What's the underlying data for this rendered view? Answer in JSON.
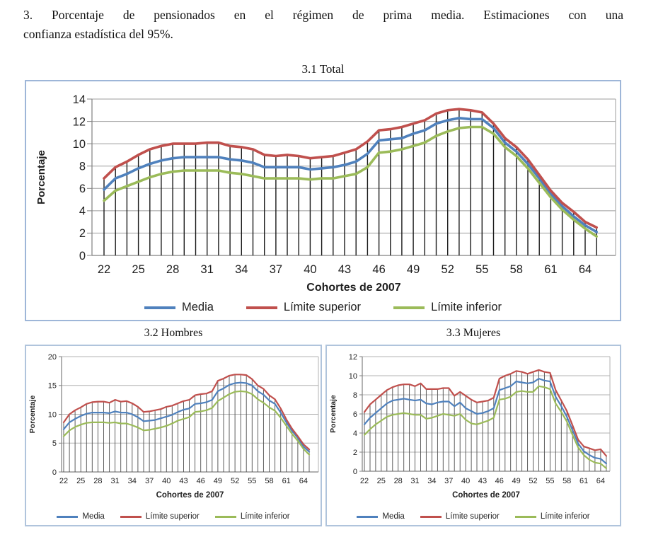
{
  "page": {
    "heading_line1": "3. Porcentaje de pensionados en el régimen de prima media. Estimaciones con una",
    "heading_line2": "confianza estadística del 95%."
  },
  "colors": {
    "media": "#4F81BD",
    "limite_superior": "#C0504D",
    "limite_inferior": "#9BBB59",
    "chart_border_blue": "#9eb6d8",
    "gridline_gray": "#9e9e9e",
    "axis_gray": "#808080",
    "dropline_dark": "#1a1a1a"
  },
  "chart_data": [
    {
      "type": "line",
      "title": "3.1 Total",
      "xlabel": "Cohortes de 2007",
      "ylabel": "Porcentaje",
      "x": [
        22,
        23,
        24,
        25,
        26,
        27,
        28,
        29,
        30,
        31,
        32,
        33,
        34,
        35,
        36,
        37,
        38,
        39,
        40,
        41,
        42,
        43,
        44,
        45,
        46,
        47,
        48,
        49,
        50,
        51,
        52,
        53,
        54,
        55,
        56,
        57,
        58,
        59,
        60,
        61,
        62,
        63,
        64,
        65
      ],
      "xticks": [
        22,
        25,
        28,
        31,
        34,
        37,
        40,
        43,
        46,
        49,
        52,
        55,
        58,
        61,
        64
      ],
      "ylim": [
        0,
        14
      ],
      "yticks": [
        0,
        2,
        4,
        6,
        8,
        10,
        12,
        14
      ],
      "grid": true,
      "droplines": true,
      "legend_position": "bottom",
      "series": [
        {
          "name": "Media",
          "color": "#4F81BD",
          "values": [
            5.9,
            6.9,
            7.3,
            7.8,
            8.2,
            8.5,
            8.7,
            8.8,
            8.8,
            8.8,
            8.8,
            8.6,
            8.5,
            8.3,
            7.9,
            7.9,
            7.9,
            7.9,
            7.7,
            7.8,
            7.9,
            8.1,
            8.4,
            9.1,
            10.3,
            10.4,
            10.5,
            10.9,
            11.2,
            11.8,
            12.1,
            12.3,
            12.2,
            12.2,
            11.4,
            10.1,
            9.3,
            8.2,
            6.9,
            5.5,
            4.4,
            3.5,
            2.7,
            2.1
          ]
        },
        {
          "name": "Límite superior",
          "color": "#C0504D",
          "values": [
            6.9,
            7.9,
            8.4,
            9.0,
            9.5,
            9.8,
            10.0,
            10.0,
            10.0,
            10.1,
            10.1,
            9.8,
            9.7,
            9.5,
            9.0,
            8.9,
            9.0,
            8.9,
            8.7,
            8.8,
            8.9,
            9.2,
            9.5,
            10.2,
            11.2,
            11.3,
            11.5,
            11.8,
            12.1,
            12.7,
            13.0,
            13.1,
            13.0,
            12.8,
            11.8,
            10.5,
            9.7,
            8.6,
            7.2,
            5.8,
            4.7,
            3.9,
            3.0,
            2.5
          ]
        },
        {
          "name": "Límite inferior",
          "color": "#9BBB59",
          "values": [
            4.9,
            5.8,
            6.2,
            6.6,
            7.0,
            7.3,
            7.5,
            7.6,
            7.6,
            7.6,
            7.6,
            7.4,
            7.3,
            7.1,
            6.9,
            6.9,
            6.9,
            6.9,
            6.8,
            6.9,
            6.9,
            7.1,
            7.3,
            7.9,
            9.2,
            9.3,
            9.5,
            9.8,
            10.1,
            10.7,
            11.1,
            11.4,
            11.5,
            11.5,
            10.9,
            9.7,
            8.9,
            7.8,
            6.5,
            5.2,
            4.1,
            3.2,
            2.4,
            1.7
          ]
        }
      ]
    },
    {
      "type": "line",
      "title": "3.2 Hombres",
      "xlabel": "Cohortes de 2007",
      "ylabel": "Porcentaje",
      "x": [
        22,
        23,
        24,
        25,
        26,
        27,
        28,
        29,
        30,
        31,
        32,
        33,
        34,
        35,
        36,
        37,
        38,
        39,
        40,
        41,
        42,
        43,
        44,
        45,
        46,
        47,
        48,
        49,
        50,
        51,
        52,
        53,
        54,
        55,
        56,
        57,
        58,
        59,
        60,
        61,
        62,
        63,
        64,
        65
      ],
      "xticks": [
        22,
        25,
        28,
        31,
        34,
        37,
        40,
        43,
        46,
        49,
        52,
        55,
        58,
        61,
        64
      ],
      "ylim": [
        0,
        20
      ],
      "yticks": [
        0,
        5,
        10,
        15,
        20
      ],
      "grid": true,
      "droplines": true,
      "legend_position": "bottom",
      "series": [
        {
          "name": "Media",
          "color": "#4F81BD",
          "values": [
            7.4,
            8.6,
            9.2,
            9.7,
            10.1,
            10.3,
            10.3,
            10.3,
            10.2,
            10.5,
            10.3,
            10.3,
            10.0,
            9.5,
            8.8,
            8.9,
            9.0,
            9.3,
            9.6,
            9.9,
            10.4,
            10.8,
            11.0,
            11.8,
            11.9,
            12.1,
            12.5,
            14.0,
            14.5,
            15.1,
            15.4,
            15.5,
            15.4,
            15.0,
            14.0,
            13.4,
            12.4,
            11.8,
            10.3,
            8.6,
            7.1,
            5.9,
            4.4,
            3.5
          ]
        },
        {
          "name": "Límite superior",
          "color": "#C0504D",
          "values": [
            8.6,
            10.0,
            10.7,
            11.2,
            11.8,
            12.1,
            12.2,
            12.2,
            12.0,
            12.5,
            12.2,
            12.3,
            11.9,
            11.3,
            10.4,
            10.5,
            10.7,
            10.9,
            11.3,
            11.5,
            11.9,
            12.3,
            12.5,
            13.3,
            13.5,
            13.6,
            14.0,
            15.8,
            16.2,
            16.7,
            16.9,
            16.9,
            16.8,
            16.1,
            15.0,
            14.4,
            13.3,
            12.6,
            11.0,
            9.1,
            7.5,
            6.2,
            4.8,
            3.9
          ]
        },
        {
          "name": "Límite inferior",
          "color": "#9BBB59",
          "values": [
            6.2,
            7.2,
            7.8,
            8.2,
            8.5,
            8.6,
            8.6,
            8.6,
            8.5,
            8.6,
            8.4,
            8.4,
            8.1,
            7.7,
            7.2,
            7.3,
            7.5,
            7.7,
            8.0,
            8.4,
            8.9,
            9.2,
            9.5,
            10.4,
            10.5,
            10.7,
            11.1,
            12.3,
            12.9,
            13.5,
            13.9,
            14.0,
            13.9,
            13.5,
            12.6,
            12.0,
            11.2,
            10.6,
            9.4,
            8.0,
            6.6,
            5.4,
            4.0,
            3.0
          ]
        }
      ]
    },
    {
      "type": "line",
      "title": "3.3 Mujeres",
      "xlabel": "Cohortes de 2007",
      "ylabel": "Porcentaje",
      "x": [
        22,
        23,
        24,
        25,
        26,
        27,
        28,
        29,
        30,
        31,
        32,
        33,
        34,
        35,
        36,
        37,
        38,
        39,
        40,
        41,
        42,
        43,
        44,
        45,
        46,
        47,
        48,
        49,
        50,
        51,
        52,
        53,
        54,
        55,
        56,
        57,
        58,
        59,
        60,
        61,
        62,
        63,
        64,
        65
      ],
      "xticks": [
        22,
        25,
        28,
        31,
        34,
        37,
        40,
        43,
        46,
        49,
        52,
        55,
        58,
        61,
        64
      ],
      "ylim": [
        0,
        12
      ],
      "yticks": [
        0,
        2,
        4,
        6,
        8,
        10,
        12
      ],
      "grid": true,
      "droplines": true,
      "legend_position": "bottom",
      "series": [
        {
          "name": "Media",
          "color": "#4F81BD",
          "values": [
            4.9,
            5.6,
            6.1,
            6.6,
            7.1,
            7.4,
            7.5,
            7.6,
            7.5,
            7.4,
            7.5,
            7.1,
            7.0,
            7.2,
            7.3,
            7.3,
            6.8,
            7.2,
            6.6,
            6.3,
            6.0,
            6.1,
            6.3,
            6.6,
            8.5,
            8.7,
            8.9,
            9.4,
            9.3,
            9.2,
            9.3,
            9.7,
            9.5,
            9.4,
            7.8,
            6.8,
            5.7,
            4.3,
            2.9,
            2.1,
            1.7,
            1.4,
            1.3,
            0.8
          ]
        },
        {
          "name": "Límite superior",
          "color": "#C0504D",
          "values": [
            6.2,
            7.0,
            7.5,
            8.0,
            8.5,
            8.8,
            9.0,
            9.1,
            9.1,
            8.9,
            9.2,
            8.6,
            8.6,
            8.6,
            8.7,
            8.7,
            7.9,
            8.3,
            7.9,
            7.5,
            7.2,
            7.3,
            7.4,
            7.7,
            9.7,
            10.0,
            10.2,
            10.5,
            10.4,
            10.2,
            10.4,
            10.6,
            10.4,
            10.3,
            8.5,
            7.4,
            6.3,
            4.8,
            3.3,
            2.6,
            2.4,
            2.2,
            2.3,
            1.6
          ]
        },
        {
          "name": "Límite inferior",
          "color": "#9BBB59",
          "values": [
            3.8,
            4.4,
            4.9,
            5.3,
            5.7,
            5.9,
            6.0,
            6.1,
            6.0,
            5.9,
            5.9,
            5.5,
            5.6,
            5.8,
            6.0,
            5.9,
            5.8,
            6.0,
            5.4,
            5.0,
            4.9,
            5.1,
            5.3,
            5.6,
            7.5,
            7.6,
            7.8,
            8.3,
            8.4,
            8.3,
            8.3,
            8.9,
            8.8,
            8.6,
            7.1,
            6.2,
            5.2,
            3.8,
            2.5,
            1.7,
            1.2,
            0.9,
            0.8,
            0.3
          ]
        }
      ]
    }
  ]
}
